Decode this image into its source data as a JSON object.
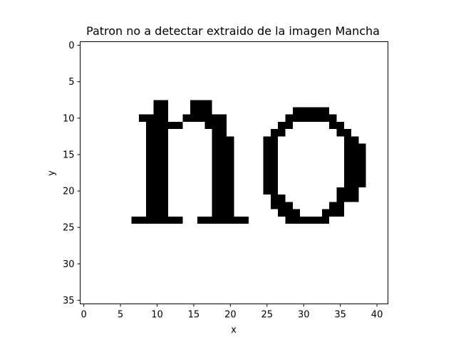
{
  "chart_data": {
    "type": "heatmap",
    "title": "Patron no a detectar extraido de la imagen Mancha",
    "xlabel": "x",
    "ylabel": "y",
    "xlim": [
      -0.5,
      41.5
    ],
    "ylim": [
      35.5,
      -0.5
    ],
    "x_ticks": [
      0,
      5,
      10,
      15,
      20,
      25,
      30,
      35,
      40
    ],
    "y_ticks": [
      0,
      5,
      10,
      15,
      20,
      25,
      30,
      35
    ],
    "colormap": "binary",
    "grid": false,
    "legend": "none",
    "width": 42,
    "height": 36,
    "filled_runs": [
      {
        "row": 8,
        "runs": [
          [
            10,
            11
          ],
          [
            15,
            17
          ]
        ]
      },
      {
        "row": 9,
        "runs": [
          [
            10,
            11
          ],
          [
            15,
            17
          ],
          [
            29,
            33
          ]
        ]
      },
      {
        "row": 10,
        "runs": [
          [
            8,
            11
          ],
          [
            14,
            19
          ],
          [
            28,
            34
          ]
        ]
      },
      {
        "row": 11,
        "runs": [
          [
            9,
            13
          ],
          [
            17,
            19
          ],
          [
            27,
            28
          ],
          [
            34,
            35
          ]
        ]
      },
      {
        "row": 12,
        "runs": [
          [
            9,
            11
          ],
          [
            18,
            19
          ],
          [
            26,
            27
          ],
          [
            35,
            36
          ]
        ]
      },
      {
        "row": 13,
        "runs": [
          [
            9,
            11
          ],
          [
            18,
            20
          ],
          [
            25,
            26
          ],
          [
            36,
            37
          ]
        ]
      },
      {
        "row": 14,
        "runs": [
          [
            9,
            11
          ],
          [
            18,
            20
          ],
          [
            25,
            26
          ],
          [
            36,
            38
          ]
        ]
      },
      {
        "row": 15,
        "runs": [
          [
            9,
            11
          ],
          [
            18,
            20
          ],
          [
            25,
            26
          ],
          [
            36,
            38
          ]
        ]
      },
      {
        "row": 16,
        "runs": [
          [
            9,
            11
          ],
          [
            18,
            20
          ],
          [
            25,
            26
          ],
          [
            36,
            38
          ]
        ]
      },
      {
        "row": 17,
        "runs": [
          [
            9,
            11
          ],
          [
            18,
            20
          ],
          [
            25,
            26
          ],
          [
            36,
            38
          ]
        ]
      },
      {
        "row": 18,
        "runs": [
          [
            9,
            11
          ],
          [
            18,
            20
          ],
          [
            25,
            26
          ],
          [
            36,
            38
          ]
        ]
      },
      {
        "row": 19,
        "runs": [
          [
            9,
            11
          ],
          [
            18,
            20
          ],
          [
            25,
            26
          ],
          [
            36,
            38
          ]
        ]
      },
      {
        "row": 20,
        "runs": [
          [
            9,
            11
          ],
          [
            18,
            20
          ],
          [
            25,
            26
          ],
          [
            35,
            37
          ]
        ]
      },
      {
        "row": 21,
        "runs": [
          [
            9,
            11
          ],
          [
            18,
            20
          ],
          [
            26,
            27
          ],
          [
            35,
            37
          ]
        ]
      },
      {
        "row": 22,
        "runs": [
          [
            9,
            11
          ],
          [
            18,
            20
          ],
          [
            26,
            28
          ],
          [
            34,
            35
          ]
        ]
      },
      {
        "row": 23,
        "runs": [
          [
            9,
            11
          ],
          [
            18,
            20
          ],
          [
            27,
            29
          ],
          [
            33,
            35
          ]
        ]
      },
      {
        "row": 24,
        "runs": [
          [
            7,
            13
          ],
          [
            16,
            22
          ],
          [
            28,
            33
          ]
        ]
      }
    ]
  }
}
